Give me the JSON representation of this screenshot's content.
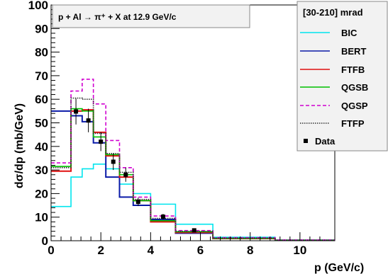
{
  "chart_data": {
    "type": "line",
    "title": "p + Al → π⁺ + X at 12.9 GeV/c",
    "xlabel": "p (GeV/c)",
    "ylabel": "dσ/dp (mb/GeV)",
    "xlim": [
      0,
      11.4
    ],
    "ylim": [
      0,
      100
    ],
    "x_ticks": [
      "0",
      "2",
      "4",
      "6",
      "8",
      "10"
    ],
    "y_ticks": [
      "0",
      "10",
      "20",
      "30",
      "40",
      "50",
      "60",
      "70",
      "80",
      "90",
      "100"
    ],
    "legend_header": "[30-210] mrad",
    "legend_position": "top-right",
    "grid": false,
    "bin_edges": [
      0,
      0.8,
      1.25,
      1.7,
      2.2,
      2.75,
      3.3,
      4.0,
      5.0,
      6.5,
      9.0,
      11.4
    ],
    "series": [
      {
        "name": "BIC",
        "color": "#00e5ee",
        "dash": "",
        "values": [
          14.5,
          27,
          30.5,
          32.5,
          30.5,
          24,
          20,
          15.5,
          7,
          1.5,
          0.3
        ]
      },
      {
        "name": "BERT",
        "color": "#0a1aa8",
        "dash": "",
        "values": [
          55,
          53,
          50.5,
          41.5,
          27,
          18.5,
          15,
          9,
          3.2,
          1.0,
          0.2
        ]
      },
      {
        "name": "FTFB",
        "color": "#e01010",
        "dash": "",
        "values": [
          29.5,
          55,
          55.5,
          46,
          36,
          27,
          17,
          8,
          3.5,
          0.9,
          0.2
        ]
      },
      {
        "name": "QGSB",
        "color": "#00c000",
        "dash": "",
        "values": [
          31.5,
          56,
          55,
          44,
          36.5,
          28,
          17,
          8.5,
          3.8,
          1.0,
          0.2
        ]
      },
      {
        "name": "QGSP",
        "color": "#d000d0",
        "dash": "5,3",
        "values": [
          33,
          63.5,
          68.5,
          58,
          42.5,
          31,
          18.5,
          10.5,
          4.3,
          1.3,
          0.3
        ]
      },
      {
        "name": "FTFP",
        "color": "#333333",
        "dash": "1.5,1.5",
        "values": [
          31,
          60.5,
          60,
          45.5,
          37,
          29,
          17.5,
          9.5,
          4.0,
          1.1,
          0.2
        ]
      }
    ],
    "data_points": {
      "name": "Data",
      "x": [
        1.0,
        1.5,
        2.0,
        2.5,
        3.0,
        3.5,
        4.5,
        5.75
      ],
      "y": [
        54.8,
        51.0,
        42.0,
        33.5,
        28.0,
        16.5,
        10.2,
        4.4
      ],
      "err": [
        5.5,
        5.0,
        4.0,
        3.5,
        3.0,
        1.8,
        1.2,
        0.6
      ]
    }
  }
}
